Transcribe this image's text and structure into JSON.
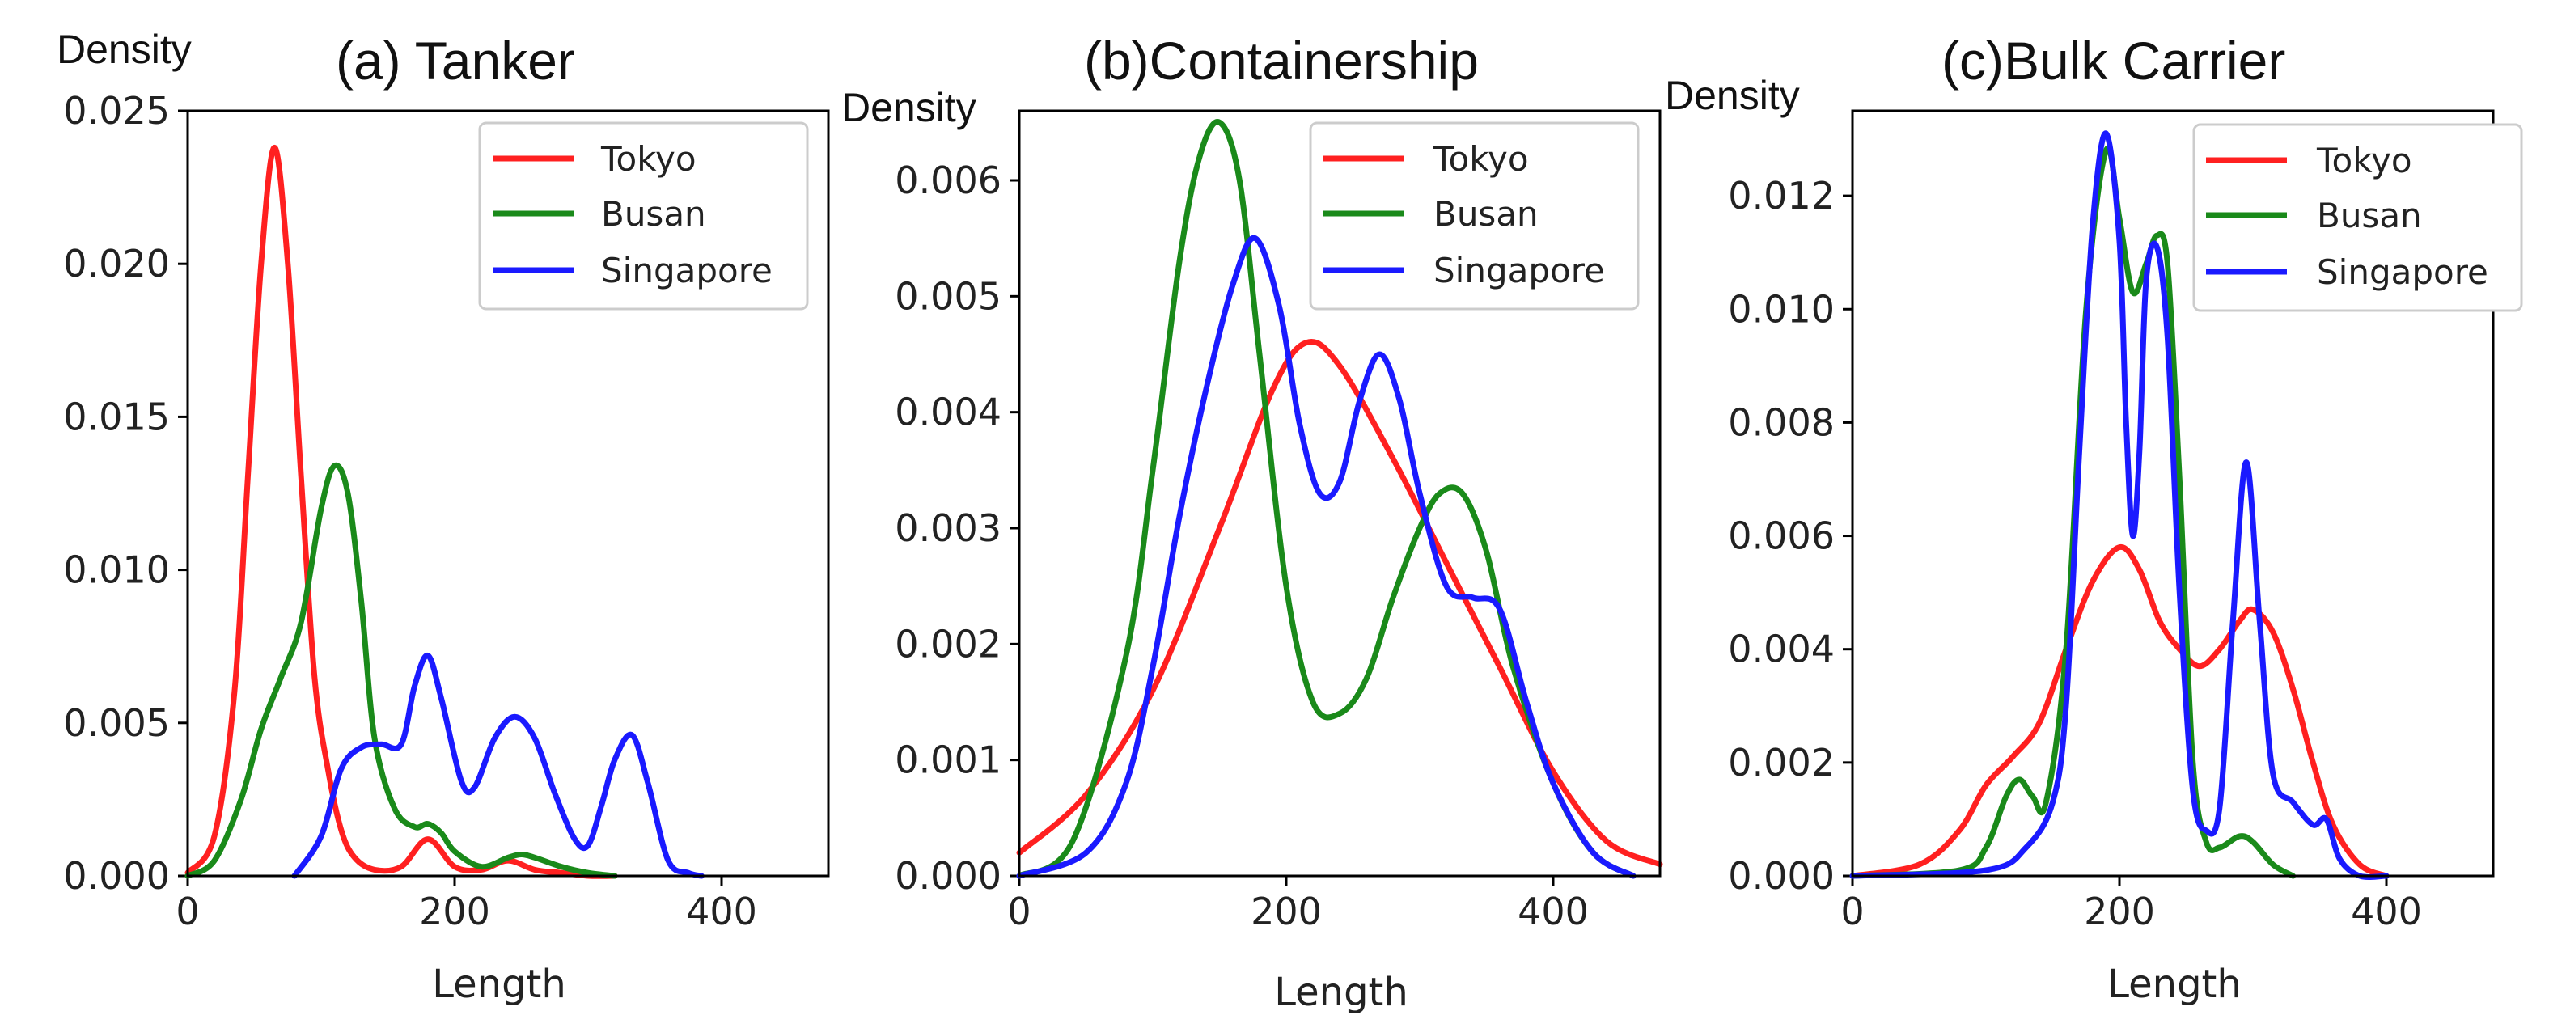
{
  "figure": {
    "colors": {
      "Tokyo": "#ff2020",
      "Busan": "#1a8a1a",
      "Singapore": "#1a1aff"
    }
  },
  "chart_data": [
    {
      "type": "line",
      "title": "(a) Tanker",
      "ylabel": "Density",
      "xlabel": "Length",
      "xlim": [
        0,
        480
      ],
      "ylim": [
        0,
        0.025
      ],
      "xticks": [
        0,
        200,
        400
      ],
      "xtick_labels": [
        "0",
        "200",
        "400"
      ],
      "yticks": [
        0,
        0.005,
        0.01,
        0.015,
        0.02,
        0.025
      ],
      "ytick_labels": [
        "0.000",
        "0.005",
        "0.010",
        "0.015",
        "0.020",
        "0.025"
      ],
      "legend": [
        "Tokyo",
        "Busan",
        "Singapore"
      ],
      "legend_position": "top-right",
      "series": [
        {
          "name": "Tokyo",
          "color": "#ff2020",
          "x": [
            0,
            20,
            35,
            45,
            55,
            65,
            75,
            85,
            95,
            105,
            115,
            125,
            140,
            160,
            180,
            200,
            220,
            240,
            260,
            280,
            300,
            320
          ],
          "y": [
            0.0001,
            0.0013,
            0.006,
            0.013,
            0.02,
            0.0238,
            0.02,
            0.013,
            0.0065,
            0.0035,
            0.0015,
            0.0006,
            0.0002,
            0.0003,
            0.0012,
            0.0003,
            0.0002,
            0.0005,
            0.0002,
            0.0001,
            0.0,
            0.0
          ]
        },
        {
          "name": "Busan",
          "color": "#1a8a1a",
          "x": [
            0,
            20,
            40,
            55,
            70,
            85,
            100,
            110,
            120,
            130,
            140,
            155,
            170,
            180,
            190,
            200,
            220,
            240,
            250,
            260,
            280,
            300,
            320
          ],
          "y": [
            0.0,
            0.0005,
            0.0025,
            0.0048,
            0.0065,
            0.0083,
            0.012,
            0.0134,
            0.0125,
            0.009,
            0.0045,
            0.0022,
            0.0016,
            0.0017,
            0.0014,
            0.0008,
            0.0003,
            0.0006,
            0.0007,
            0.0006,
            0.0003,
            0.0001,
            0.0
          ]
        },
        {
          "name": "Singapore",
          "color": "#1a1aff",
          "x": [
            80,
            100,
            115,
            130,
            145,
            160,
            170,
            180,
            190,
            205,
            215,
            230,
            245,
            260,
            275,
            290,
            300,
            310,
            320,
            333,
            345,
            360,
            375,
            385
          ],
          "y": [
            0.0,
            0.0013,
            0.0035,
            0.0042,
            0.0043,
            0.0043,
            0.0062,
            0.0072,
            0.0058,
            0.0031,
            0.0029,
            0.0045,
            0.0052,
            0.0045,
            0.0027,
            0.0012,
            0.001,
            0.0023,
            0.0038,
            0.0046,
            0.003,
            0.0005,
            0.0001,
            0.0
          ]
        }
      ]
    },
    {
      "type": "line",
      "title": "(b)Containership",
      "ylabel": "Density",
      "xlabel": "Length",
      "xlim": [
        0,
        480
      ],
      "ylim": [
        0,
        0.0066
      ],
      "xticks": [
        0,
        200,
        400
      ],
      "xtick_labels": [
        "0",
        "200",
        "400"
      ],
      "yticks": [
        0,
        0.001,
        0.002,
        0.003,
        0.004,
        0.005,
        0.006
      ],
      "ytick_labels": [
        "0.000",
        "0.001",
        "0.002",
        "0.003",
        "0.004",
        "0.005",
        "0.006"
      ],
      "legend": [
        "Tokyo",
        "Busan",
        "Singapore"
      ],
      "legend_position": "top-right",
      "series": [
        {
          "name": "Tokyo",
          "color": "#ff2020",
          "x": [
            0,
            50,
            100,
            150,
            190,
            215,
            240,
            280,
            320,
            360,
            400,
            440,
            480
          ],
          "y": [
            0.0002,
            0.0007,
            0.0016,
            0.003,
            0.0042,
            0.0046,
            0.0044,
            0.0036,
            0.0027,
            0.0018,
            0.0009,
            0.0003,
            0.0001
          ]
        },
        {
          "name": "Busan",
          "color": "#1a8a1a",
          "x": [
            0,
            40,
            80,
            100,
            120,
            135,
            150,
            165,
            180,
            200,
            220,
            240,
            260,
            280,
            300,
            315,
            332,
            350,
            370,
            400,
            430,
            460
          ],
          "y": [
            0.0,
            0.0003,
            0.0019,
            0.0035,
            0.0053,
            0.0062,
            0.0065,
            0.006,
            0.0045,
            0.0025,
            0.0015,
            0.0014,
            0.0017,
            0.0024,
            0.003,
            0.0033,
            0.0033,
            0.0028,
            0.0018,
            0.0008,
            0.0002,
            0.0
          ]
        },
        {
          "name": "Singapore",
          "color": "#1a1aff",
          "x": [
            0,
            50,
            80,
            100,
            120,
            140,
            160,
            177,
            195,
            210,
            225,
            240,
            255,
            270,
            285,
            300,
            320,
            340,
            360,
            380,
            400,
            430,
            460
          ],
          "y": [
            0.0,
            0.0002,
            0.0008,
            0.0018,
            0.0031,
            0.0042,
            0.0051,
            0.0055,
            0.0049,
            0.0039,
            0.0033,
            0.0034,
            0.0041,
            0.0045,
            0.0041,
            0.0033,
            0.0025,
            0.0024,
            0.0023,
            0.0015,
            0.0008,
            0.0002,
            0.0
          ]
        }
      ]
    },
    {
      "type": "line",
      "title": "(c)Bulk Carrier",
      "ylabel": "Density",
      "xlabel": "Length",
      "xlim": [
        0,
        480
      ],
      "ylim": [
        0,
        0.0135
      ],
      "xticks": [
        0,
        200,
        400
      ],
      "xtick_labels": [
        "0",
        "200",
        "400"
      ],
      "yticks": [
        0,
        0.002,
        0.004,
        0.006,
        0.008,
        0.01,
        0.012
      ],
      "ytick_labels": [
        "0.000",
        "0.002",
        "0.004",
        "0.006",
        "0.008",
        "0.010",
        "0.012"
      ],
      "legend": [
        "Tokyo",
        "Busan",
        "Singapore"
      ],
      "legend_position": "top-right",
      "series": [
        {
          "name": "Tokyo",
          "color": "#ff2020",
          "x": [
            0,
            50,
            80,
            100,
            120,
            140,
            160,
            180,
            200,
            215,
            230,
            245,
            260,
            275,
            290,
            300,
            315,
            330,
            345,
            360,
            380,
            400
          ],
          "y": [
            0.0,
            0.0002,
            0.0008,
            0.0016,
            0.0021,
            0.0027,
            0.004,
            0.0052,
            0.0058,
            0.0054,
            0.0045,
            0.004,
            0.0037,
            0.004,
            0.0045,
            0.0047,
            0.0043,
            0.0033,
            0.002,
            0.0009,
            0.0002,
            0.0
          ]
        },
        {
          "name": "Busan",
          "color": "#1a8a1a",
          "x": [
            0,
            80,
            100,
            115,
            125,
            135,
            145,
            160,
            175,
            190,
            200,
            210,
            220,
            228,
            236,
            245,
            255,
            265,
            275,
            290,
            300,
            315,
            330
          ],
          "y": [
            0.0,
            0.0001,
            0.0005,
            0.0014,
            0.0017,
            0.0014,
            0.0013,
            0.004,
            0.01,
            0.0128,
            0.0116,
            0.0103,
            0.0108,
            0.0113,
            0.0108,
            0.007,
            0.002,
            0.0006,
            0.0005,
            0.0007,
            0.0006,
            0.0002,
            0.0
          ]
        },
        {
          "name": "Singapore",
          "color": "#1a1aff",
          "x": [
            0,
            100,
            130,
            150,
            160,
            170,
            180,
            190,
            200,
            205,
            210,
            215,
            220,
            228,
            236,
            245,
            255,
            265,
            275,
            285,
            295,
            305,
            315,
            330,
            345,
            355,
            365,
            380,
            400
          ],
          "y": [
            0.0,
            0.0001,
            0.0005,
            0.0013,
            0.003,
            0.0075,
            0.0115,
            0.0131,
            0.0112,
            0.008,
            0.006,
            0.0075,
            0.0105,
            0.0111,
            0.0095,
            0.005,
            0.0015,
            0.0008,
            0.0012,
            0.0045,
            0.0073,
            0.0045,
            0.0018,
            0.0013,
            0.0009,
            0.001,
            0.0003,
            0.0,
            0.0
          ]
        }
      ]
    }
  ]
}
